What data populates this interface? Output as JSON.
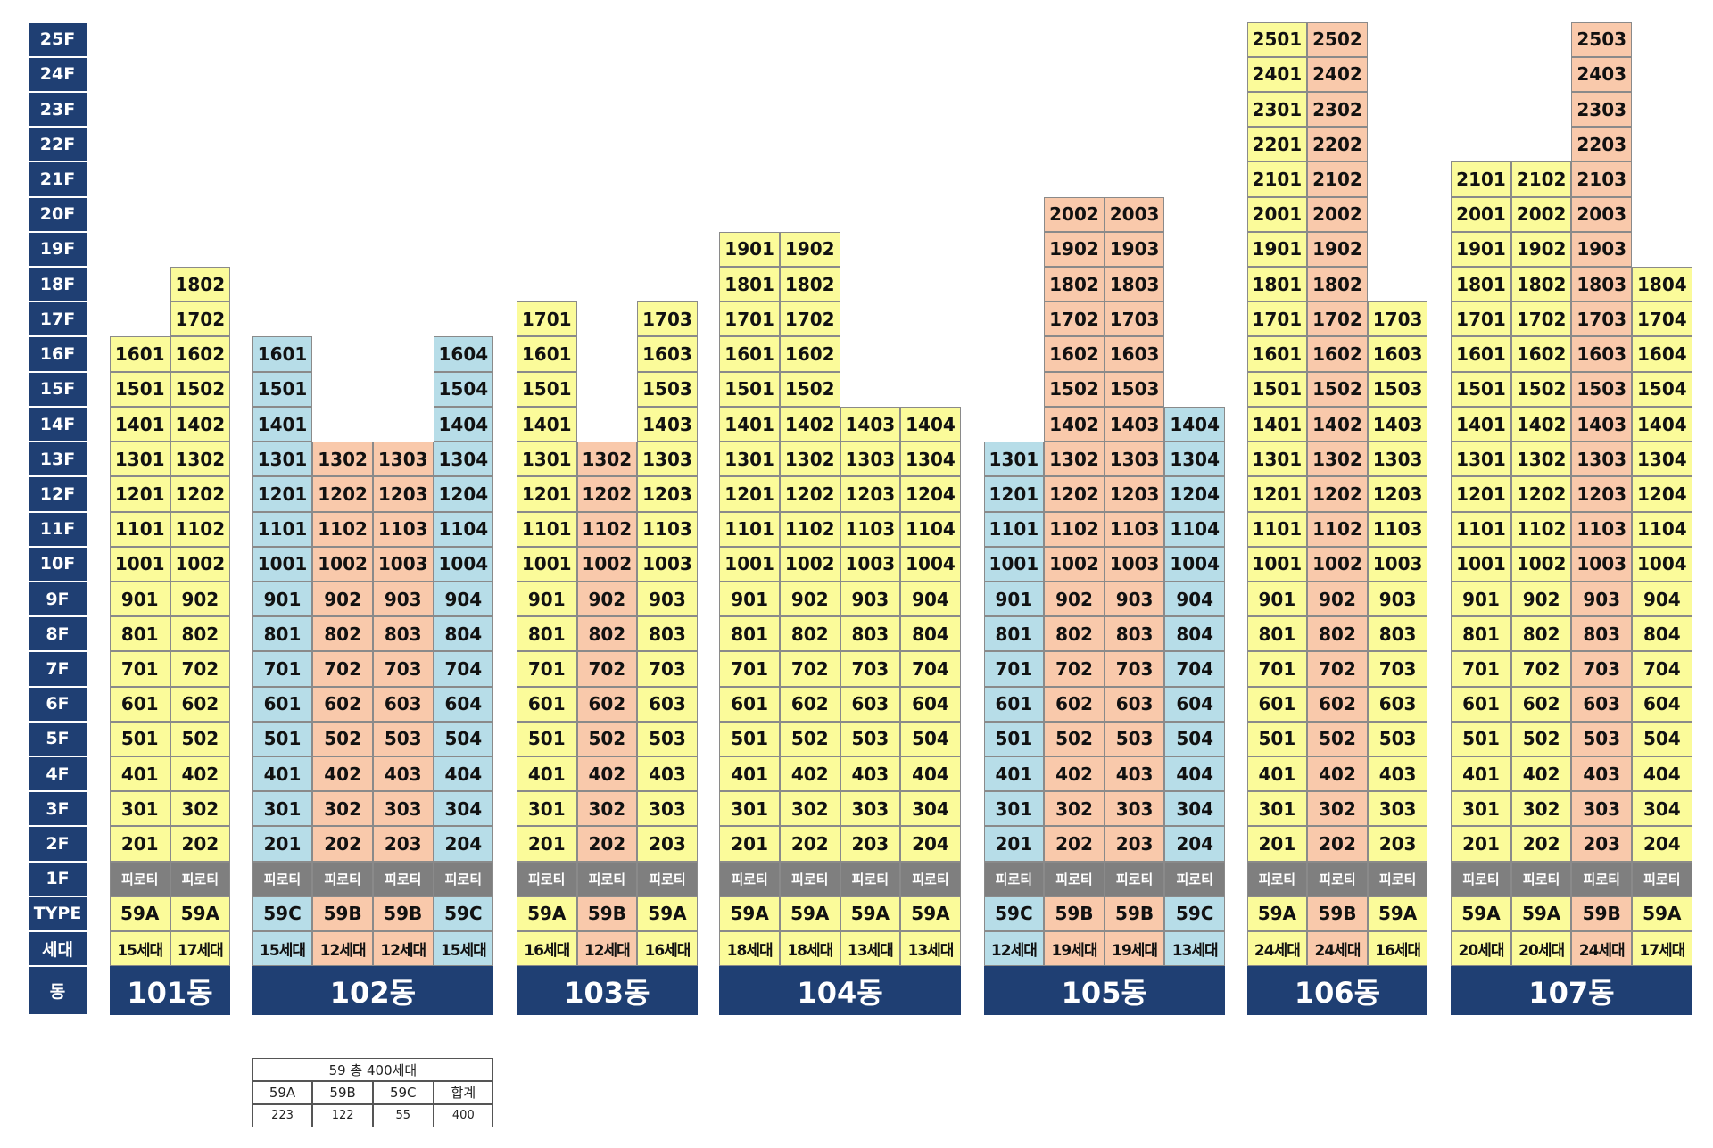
{
  "floor_labels": [
    "25F",
    "24F",
    "23F",
    "22F",
    "21F",
    "20F",
    "19F",
    "18F",
    "17F",
    "16F",
    "15F",
    "14F",
    "13F",
    "12F",
    "11F",
    "10F",
    "9F",
    "8F",
    "7F",
    "6F",
    "5F",
    "4F",
    "3F",
    "2F",
    "1F"
  ],
  "row_labels": {
    "type": "TYPE",
    "households": "세대",
    "building": "동"
  },
  "piloti_label": "피로티",
  "colors": {
    "59A": "#fbfb9a",
    "59B": "#f9c9ab",
    "59C": "#b7dde8",
    "piloti": "#7f7f7f",
    "header": "#1f3f73"
  },
  "buildings": [
    {
      "name": "101동",
      "lines": [
        {
          "type": "59A",
          "households": "15세대",
          "top_floor": 16
        },
        {
          "type": "59A",
          "households": "17세대",
          "top_floor": 18
        }
      ]
    },
    {
      "name": "102동",
      "lines": [
        {
          "type": "59C",
          "households": "15세대",
          "top_floor": 16
        },
        {
          "type": "59B",
          "households": "12세대",
          "top_floor": 13
        },
        {
          "type": "59B",
          "households": "12세대",
          "top_floor": 13
        },
        {
          "type": "59C",
          "households": "15세대",
          "top_floor": 16
        }
      ]
    },
    {
      "name": "103동",
      "lines": [
        {
          "type": "59A",
          "households": "16세대",
          "top_floor": 17
        },
        {
          "type": "59B",
          "households": "12세대",
          "top_floor": 13
        },
        {
          "type": "59A",
          "households": "16세대",
          "top_floor": 17
        }
      ]
    },
    {
      "name": "104동",
      "lines": [
        {
          "type": "59A",
          "households": "18세대",
          "top_floor": 19
        },
        {
          "type": "59A",
          "households": "18세대",
          "top_floor": 19
        },
        {
          "type": "59A",
          "households": "13세대",
          "top_floor": 14
        },
        {
          "type": "59A",
          "households": "13세대",
          "top_floor": 14
        }
      ]
    },
    {
      "name": "105동",
      "lines": [
        {
          "type": "59C",
          "households": "12세대",
          "top_floor": 13
        },
        {
          "type": "59B",
          "households": "19세대",
          "top_floor": 20
        },
        {
          "type": "59B",
          "households": "19세대",
          "top_floor": 20
        },
        {
          "type": "59C",
          "households": "13세대",
          "top_floor": 14
        }
      ]
    },
    {
      "name": "106동",
      "lines": [
        {
          "type": "59A",
          "households": "24세대",
          "top_floor": 25
        },
        {
          "type": "59B",
          "households": "24세대",
          "top_floor": 25
        },
        {
          "type": "59A",
          "households": "16세대",
          "top_floor": 17
        }
      ]
    },
    {
      "name": "107동",
      "lines": [
        {
          "type": "59A",
          "households": "20세대",
          "top_floor": 21
        },
        {
          "type": "59A",
          "households": "20세대",
          "top_floor": 21
        },
        {
          "type": "59B",
          "households": "24세대",
          "top_floor": 25
        },
        {
          "type": "59A",
          "households": "17세대",
          "top_floor": 18
        }
      ]
    }
  ],
  "summary": {
    "title": "59 총 400세대",
    "headers": [
      "59A",
      "59B",
      "59C",
      "합계"
    ],
    "values": [
      "223",
      "122",
      "55",
      "400"
    ]
  }
}
